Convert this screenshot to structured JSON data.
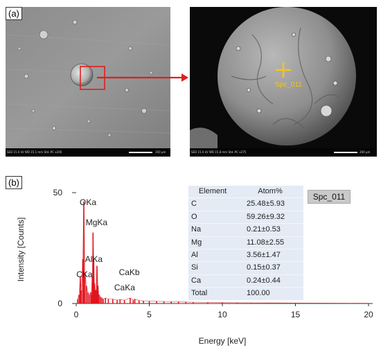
{
  "panel_a": {
    "label": "(a)",
    "left_image": {
      "info_text": "SED   15.0 kV  WD 15.1 mm    Std.-PC      x200",
      "scale_text": "100 μm"
    },
    "right_image": {
      "spot_label": "Spc_011",
      "info_text": "SED   15.0 kV  WD 15.8 mm    Std.-PC      x275",
      "scale_text": "200 μm"
    }
  },
  "panel_b": {
    "label": "(b)",
    "spot_box": "Spc_011",
    "table": {
      "headers": [
        "Element",
        "Atom%"
      ],
      "rows": [
        [
          "C",
          "25.48±5.93"
        ],
        [
          "O",
          "59.26±9.32"
        ],
        [
          "Na",
          "0.21±0.53"
        ],
        [
          "Mg",
          "11.08±2.55"
        ],
        [
          "Al",
          "3.56±1.47"
        ],
        [
          "Si",
          "0.15±0.37"
        ],
        [
          "Ca",
          "0.24±0.44"
        ],
        [
          "Total",
          "100.00"
        ]
      ]
    }
  },
  "chart_data": {
    "type": "line",
    "xlabel": "Energy [keV]",
    "ylabel": "Intensity [Counts]",
    "xlim": [
      0,
      20
    ],
    "ylim": [
      0,
      50
    ],
    "xticks": [
      "0",
      "5",
      "10",
      "15",
      "20"
    ],
    "yticks": [
      "0",
      "50"
    ],
    "series": [
      {
        "color": "#e0141e",
        "x": [
          0.1,
          0.2,
          0.28,
          0.35,
          0.45,
          0.52,
          0.6,
          0.7,
          0.8,
          0.9,
          1.0,
          1.04,
          1.1,
          1.15,
          1.2,
          1.25,
          1.3,
          1.35,
          1.42,
          1.49,
          1.56,
          1.65,
          1.75,
          1.85,
          2.0,
          2.2,
          2.5,
          2.8,
          3.0,
          3.3,
          3.69,
          3.9,
          4.01,
          4.3,
          4.6,
          5.0,
          5.5,
          6.0,
          6.5,
          7.0,
          7.5,
          8.0,
          9.0,
          10.0,
          11.0,
          12.0,
          14.0,
          16.0,
          18.0,
          20.0
        ],
        "y": [
          2,
          4,
          12,
          6,
          20,
          46,
          14,
          8,
          5,
          4,
          5,
          4,
          12,
          32,
          20,
          9,
          6,
          6,
          17,
          8,
          4,
          3,
          2.5,
          2,
          2.5,
          2,
          2,
          1.5,
          1.8,
          1.5,
          2.5,
          1.5,
          2,
          1.3,
          1.2,
          1.1,
          1,
          0.9,
          0.8,
          0.8,
          0.7,
          0.6,
          0.5,
          0.4,
          0.35,
          0.3,
          0.25,
          0.2,
          0.15,
          0.1
        ]
      }
    ],
    "annotations": [
      {
        "text": "OKa",
        "x": 0.52
      },
      {
        "text": "MgKa",
        "x": 1.25
      },
      {
        "text": "AlKa",
        "x": 1.49
      },
      {
        "text": "CKa",
        "x": 0.28
      },
      {
        "text": "CaKb",
        "x": 4.01
      },
      {
        "text": "CaKa",
        "x": 3.69
      }
    ]
  }
}
